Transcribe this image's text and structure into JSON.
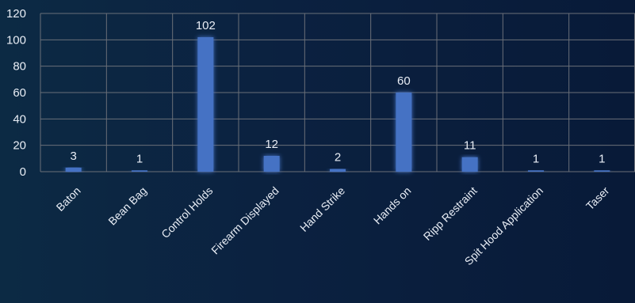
{
  "chart_data": {
    "type": "bar",
    "title": "",
    "xlabel": "",
    "ylabel": "",
    "categories": [
      "Baton",
      "Bean Bag",
      "Control Holds",
      "Firearm Displayed",
      "Hand Strike",
      "Hands on",
      "Ripp Restraint",
      "Spit Hood Application",
      "Taser"
    ],
    "values": [
      3,
      1,
      102,
      12,
      2,
      60,
      11,
      1,
      1
    ],
    "ylim": [
      0,
      120
    ],
    "yticks": [
      0,
      20,
      40,
      60,
      80,
      100,
      120
    ],
    "grid": true,
    "legend": "none",
    "colors": {
      "bar": "#4472c4",
      "grid": "#6a6f78",
      "text": "#e8edf5"
    }
  }
}
